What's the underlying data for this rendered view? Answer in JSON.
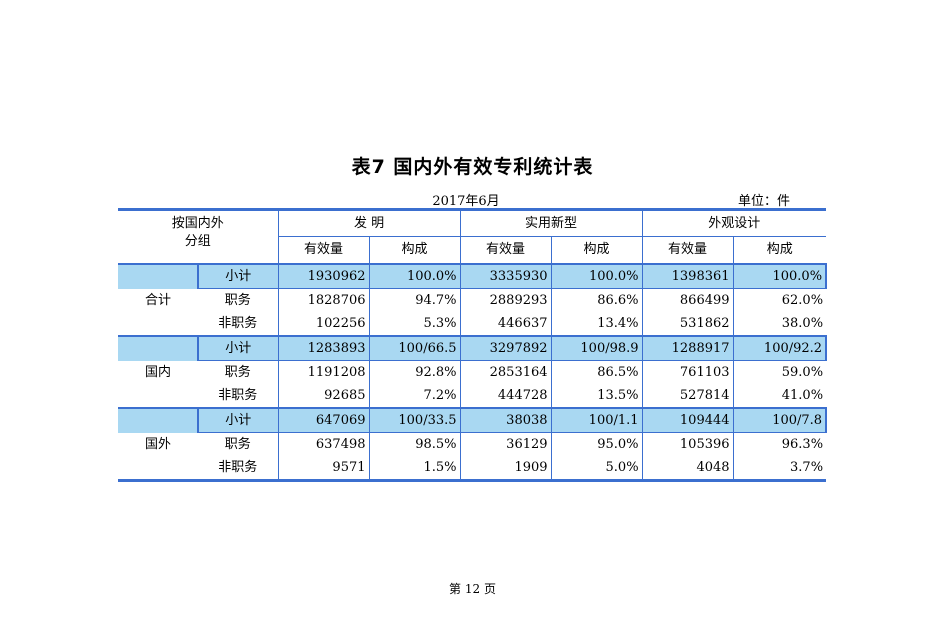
{
  "title": "表7   国内外有效专利统计表",
  "date": "2017年6月",
  "unit": "单位：件",
  "header": {
    "corner_line1": "按国内外",
    "corner_line2": "分组",
    "cat_invention": "发      明",
    "cat_utility": "实用新型",
    "cat_design": "外观设计",
    "col_count": "有效量",
    "col_ratio": "构成"
  },
  "groups": [
    {
      "name": "合计",
      "rows": [
        {
          "label": "小计",
          "inv_n": "1930962",
          "inv_p": "100.0%",
          "uti_n": "3335930",
          "uti_p": "100.0%",
          "des_n": "1398361",
          "des_p": "100.0%"
        },
        {
          "label": "职务",
          "inv_n": "1828706",
          "inv_p": "94.7%",
          "uti_n": "2889293",
          "uti_p": "86.6%",
          "des_n": "866499",
          "des_p": "62.0%"
        },
        {
          "label": "非职务",
          "inv_n": "102256",
          "inv_p": "5.3%",
          "uti_n": "446637",
          "uti_p": "13.4%",
          "des_n": "531862",
          "des_p": "38.0%"
        }
      ]
    },
    {
      "name": "国内",
      "rows": [
        {
          "label": "小计",
          "inv_n": "1283893",
          "inv_p": "100/66.5",
          "uti_n": "3297892",
          "uti_p": "100/98.9",
          "des_n": "1288917",
          "des_p": "100/92.2"
        },
        {
          "label": "职务",
          "inv_n": "1191208",
          "inv_p": "92.8%",
          "uti_n": "2853164",
          "uti_p": "86.5%",
          "des_n": "761103",
          "des_p": "59.0%"
        },
        {
          "label": "非职务",
          "inv_n": "92685",
          "inv_p": "7.2%",
          "uti_n": "444728",
          "uti_p": "13.5%",
          "des_n": "527814",
          "des_p": "41.0%"
        }
      ]
    },
    {
      "name": "国外",
      "rows": [
        {
          "label": "小计",
          "inv_n": "647069",
          "inv_p": "100/33.5",
          "uti_n": "38038",
          "uti_p": "100/1.1",
          "des_n": "109444",
          "des_p": "100/7.8"
        },
        {
          "label": "职务",
          "inv_n": "637498",
          "inv_p": "98.5%",
          "uti_n": "36129",
          "uti_p": "95.0%",
          "des_n": "105396",
          "des_p": "96.3%"
        },
        {
          "label": "非职务",
          "inv_n": "9571",
          "inv_p": "1.5%",
          "uti_n": "1909",
          "uti_p": "5.0%",
          "des_n": "4048",
          "des_p": "3.7%"
        }
      ]
    }
  ],
  "footer": "第  12  页"
}
